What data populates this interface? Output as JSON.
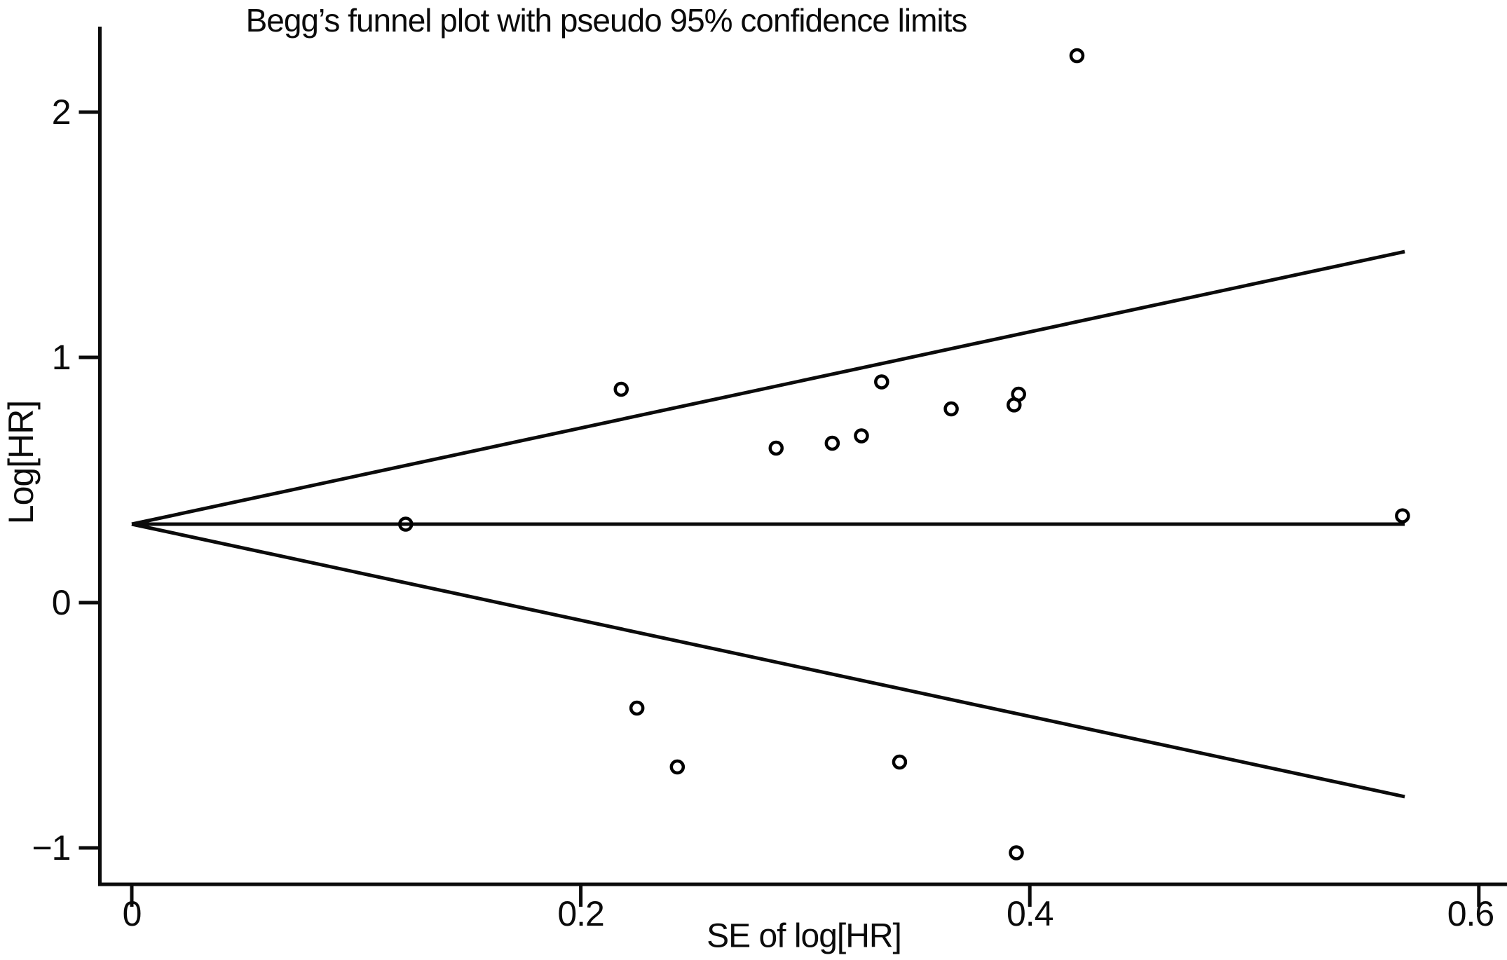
{
  "page": {
    "background": "#ffffff",
    "foreground": "#0b0b0b"
  },
  "chart_data": {
    "type": "scatter",
    "title": "Begg’s funnel plot with pseudo 95% confidence limits",
    "xlabel": "SE of log[HR]",
    "ylabel": "Log[HR]",
    "grid": false,
    "legend": null,
    "xlim": [
      -0.014,
      0.613
    ],
    "ylim": [
      -1.15,
      2.35
    ],
    "x_ticks": [
      {
        "value": 0,
        "label": "0"
      },
      {
        "value": 0.2,
        "label": "0.2"
      },
      {
        "value": 0.4,
        "label": "0.4"
      },
      {
        "value": 0.6,
        "label": "0.6"
      }
    ],
    "y_ticks": [
      {
        "value": 2,
        "label": "2"
      },
      {
        "value": 1,
        "label": "1"
      },
      {
        "value": 0,
        "label": "0"
      },
      {
        "value": -1,
        "label": "−1"
      }
    ],
    "marker": {
      "shape": "open-circle",
      "color": "#000000"
    },
    "points": [
      {
        "se": 0.421,
        "loghr": 2.23
      },
      {
        "se": 0.218,
        "loghr": 0.87
      },
      {
        "se": 0.334,
        "loghr": 0.9
      },
      {
        "se": 0.365,
        "loghr": 0.79
      },
      {
        "se": 0.395,
        "loghr": 0.85
      },
      {
        "se": 0.393,
        "loghr": 0.806
      },
      {
        "se": 0.287,
        "loghr": 0.63
      },
      {
        "se": 0.312,
        "loghr": 0.65
      },
      {
        "se": 0.325,
        "loghr": 0.68
      },
      {
        "se": 0.122,
        "loghr": 0.32
      },
      {
        "se": 0.566,
        "loghr": 0.354
      },
      {
        "se": 0.225,
        "loghr": -0.43
      },
      {
        "se": 0.243,
        "loghr": -0.67
      },
      {
        "se": 0.342,
        "loghr": -0.65
      },
      {
        "se": 0.394,
        "loghr": -1.02
      }
    ],
    "funnel": {
      "center_loghr": 0.32,
      "z": 1.96,
      "se_start": 0,
      "se_end": 0.567,
      "upper_end_loghr": 1.43,
      "lower_end_loghr": -0.79
    }
  }
}
